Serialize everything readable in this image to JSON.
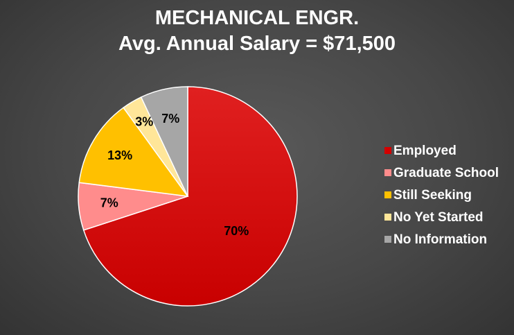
{
  "chart_data": {
    "type": "pie",
    "title": "MECHANICAL ENGR.",
    "subtitle": "Avg. Annual Salary = $71,500",
    "categories": [
      "Employed",
      "Graduate School",
      "Still Seeking",
      "No Yet Started",
      "No Information"
    ],
    "values": [
      70,
      7,
      13,
      3,
      7
    ],
    "data_labels": [
      "70%",
      "7%",
      "13%",
      "3%",
      "7%"
    ],
    "colors": [
      "#d40000",
      "#ff8c8c",
      "#ffc000",
      "#ffe699",
      "#a6a6a6"
    ],
    "start_angle_deg": 0,
    "direction": "clockwise",
    "legend_position": "right"
  }
}
